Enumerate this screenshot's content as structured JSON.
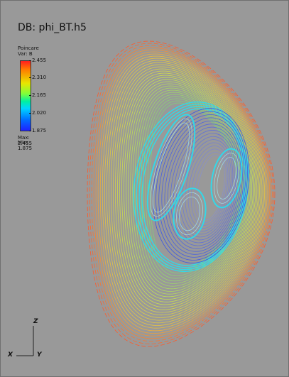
{
  "db_title": "DB: phi_BT.h5",
  "legend": {
    "plot_name": "Poincare",
    "variable": "Var: B",
    "ticks": [
      "2.455",
      "2.310",
      "2.165",
      "2.020",
      "1.875"
    ],
    "max_label": "Max:  2.455",
    "min_label": "Min:  1.875"
  },
  "triad": {
    "z": "Z",
    "x": "X",
    "y": "Y"
  },
  "colors": {
    "background": "#999999",
    "outer_surfaces": "#ff5a2a",
    "mid_surfaces": "#c8e050",
    "island_surfaces": "#33d8e8",
    "core_surfaces": "#3a56e6"
  }
}
